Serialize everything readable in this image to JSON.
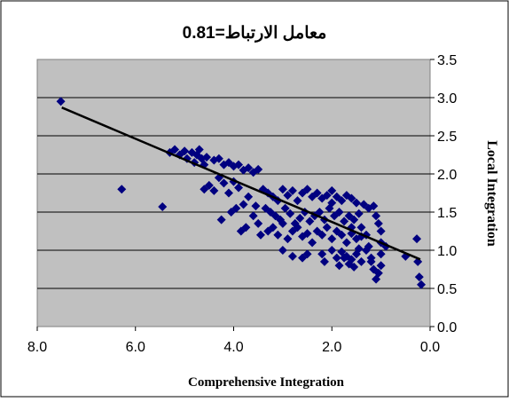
{
  "chart_data": {
    "type": "scatter",
    "title": "معامل الارتباط=0.81",
    "xlabel": "Comprehensive Integration",
    "ylabel": "Local Integration",
    "x_reversed": true,
    "xlim": [
      0.0,
      8.0
    ],
    "ylim": [
      0.0,
      3.5
    ],
    "x_ticks": [
      "8.0",
      "6.0",
      "4.0",
      "2.0",
      "0.0"
    ],
    "x_tick_values": [
      8,
      6,
      4,
      2,
      0
    ],
    "y_ticks": [
      "0.0",
      "0.5",
      "1.0",
      "1.5",
      "2.0",
      "2.5",
      "3.0",
      "3.5"
    ],
    "y_tick_values": [
      0,
      0.5,
      1,
      1.5,
      2,
      2.5,
      3,
      3.5
    ],
    "grid": "horizontal",
    "plot_background": "#c0c0c0",
    "marker_color": "#000080",
    "marker": "diamond",
    "trendline": {
      "type": "linear",
      "x": [
        7.5,
        0.2
      ],
      "y": [
        2.87,
        0.88
      ],
      "color": "#000000"
    },
    "points": [
      [
        7.52,
        2.95
      ],
      [
        6.28,
        1.8
      ],
      [
        5.45,
        1.57
      ],
      [
        0.27,
        1.15
      ],
      [
        0.18,
        0.55
      ],
      [
        0.22,
        0.65
      ],
      [
        0.25,
        0.85
      ],
      [
        0.5,
        0.92
      ],
      [
        5.3,
        2.28
      ],
      [
        5.2,
        2.32
      ],
      [
        5.1,
        2.25
      ],
      [
        5.0,
        2.3
      ],
      [
        4.95,
        2.2
      ],
      [
        4.85,
        2.28
      ],
      [
        4.8,
        2.15
      ],
      [
        4.75,
        2.25
      ],
      [
        4.7,
        2.32
      ],
      [
        4.65,
        2.2
      ],
      [
        4.6,
        2.12
      ],
      [
        4.55,
        2.22
      ],
      [
        4.4,
        2.18
      ],
      [
        4.3,
        2.2
      ],
      [
        4.2,
        2.12
      ],
      [
        4.1,
        2.15
      ],
      [
        4.0,
        2.1
      ],
      [
        3.9,
        2.12
      ],
      [
        3.8,
        2.05
      ],
      [
        3.7,
        2.08
      ],
      [
        3.6,
        2.02
      ],
      [
        3.5,
        2.06
      ],
      [
        4.6,
        1.8
      ],
      [
        4.5,
        1.85
      ],
      [
        4.4,
        1.78
      ],
      [
        4.3,
        1.95
      ],
      [
        4.2,
        1.88
      ],
      [
        4.1,
        1.75
      ],
      [
        4.0,
        1.9
      ],
      [
        3.9,
        1.82
      ],
      [
        3.8,
        1.6
      ],
      [
        3.7,
        1.7
      ],
      [
        4.25,
        1.4
      ],
      [
        4.05,
        1.5
      ],
      [
        3.95,
        1.55
      ],
      [
        3.85,
        1.25
      ],
      [
        3.75,
        1.3
      ],
      [
        3.6,
        1.45
      ],
      [
        3.5,
        1.35
      ],
      [
        3.45,
        1.2
      ],
      [
        3.4,
        1.8
      ],
      [
        3.3,
        1.75
      ],
      [
        3.2,
        1.7
      ],
      [
        3.1,
        1.65
      ],
      [
        3.0,
        1.8
      ],
      [
        2.9,
        1.72
      ],
      [
        2.8,
        1.78
      ],
      [
        2.7,
        1.65
      ],
      [
        2.6,
        1.75
      ],
      [
        2.5,
        1.8
      ],
      [
        3.35,
        1.55
      ],
      [
        3.25,
        1.5
      ],
      [
        3.15,
        1.45
      ],
      [
        3.05,
        1.4
      ],
      [
        2.95,
        1.55
      ],
      [
        2.85,
        1.48
      ],
      [
        2.75,
        1.35
      ],
      [
        2.65,
        1.42
      ],
      [
        2.55,
        1.5
      ],
      [
        2.45,
        1.38
      ],
      [
        3.3,
        1.25
      ],
      [
        3.2,
        1.3
      ],
      [
        3.1,
        1.2
      ],
      [
        3.0,
        1.35
      ],
      [
        2.9,
        1.15
      ],
      [
        2.8,
        1.25
      ],
      [
        2.7,
        1.3
      ],
      [
        2.6,
        1.18
      ],
      [
        2.5,
        1.22
      ],
      [
        2.4,
        1.1
      ],
      [
        2.4,
        1.7
      ],
      [
        2.3,
        1.75
      ],
      [
        2.2,
        1.68
      ],
      [
        2.1,
        1.72
      ],
      [
        2.0,
        1.78
      ],
      [
        1.9,
        1.7
      ],
      [
        1.8,
        1.65
      ],
      [
        1.7,
        1.72
      ],
      [
        1.6,
        1.68
      ],
      [
        1.5,
        1.62
      ],
      [
        2.35,
        1.45
      ],
      [
        2.25,
        1.5
      ],
      [
        2.15,
        1.4
      ],
      [
        2.05,
        1.55
      ],
      [
        1.95,
        1.45
      ],
      [
        1.85,
        1.5
      ],
      [
        1.75,
        1.38
      ],
      [
        1.65,
        1.45
      ],
      [
        1.55,
        1.4
      ],
      [
        1.45,
        1.48
      ],
      [
        2.3,
        1.25
      ],
      [
        2.2,
        1.2
      ],
      [
        2.1,
        1.3
      ],
      [
        2.0,
        1.15
      ],
      [
        1.9,
        1.25
      ],
      [
        1.8,
        1.2
      ],
      [
        1.7,
        1.1
      ],
      [
        1.6,
        1.22
      ],
      [
        1.5,
        1.15
      ],
      [
        1.4,
        1.18
      ],
      [
        2.2,
        0.95
      ],
      [
        2.0,
        1.0
      ],
      [
        1.9,
        0.9
      ],
      [
        1.8,
        0.98
      ],
      [
        1.7,
        0.92
      ],
      [
        1.6,
        0.88
      ],
      [
        1.5,
        0.95
      ],
      [
        1.4,
        0.85
      ],
      [
        1.3,
        1.0
      ],
      [
        1.2,
        0.9
      ],
      [
        1.35,
        1.6
      ],
      [
        1.25,
        1.55
      ],
      [
        1.15,
        1.58
      ],
      [
        1.1,
        1.45
      ],
      [
        1.05,
        1.35
      ],
      [
        1.0,
        1.25
      ],
      [
        1.0,
        1.1
      ],
      [
        1.0,
        0.95
      ],
      [
        1.0,
        0.8
      ],
      [
        1.05,
        0.7
      ],
      [
        1.1,
        0.62
      ],
      [
        1.15,
        0.75
      ],
      [
        1.2,
        0.85
      ],
      [
        1.25,
        1.05
      ],
      [
        1.3,
        1.2
      ],
      [
        1.4,
        1.3
      ],
      [
        1.45,
        1.02
      ],
      [
        1.55,
        0.78
      ],
      [
        1.65,
        0.82
      ],
      [
        1.75,
        0.9
      ],
      [
        2.6,
        0.9
      ],
      [
        2.5,
        0.95
      ],
      [
        2.8,
        0.92
      ],
      [
        3.0,
        1.0
      ],
      [
        2.15,
        0.85
      ],
      [
        1.85,
        0.8
      ],
      [
        0.9,
        1.05
      ],
      [
        3.55,
        1.58
      ],
      [
        2.0,
        1.62
      ],
      [
        1.6,
        1.3
      ]
    ]
  }
}
